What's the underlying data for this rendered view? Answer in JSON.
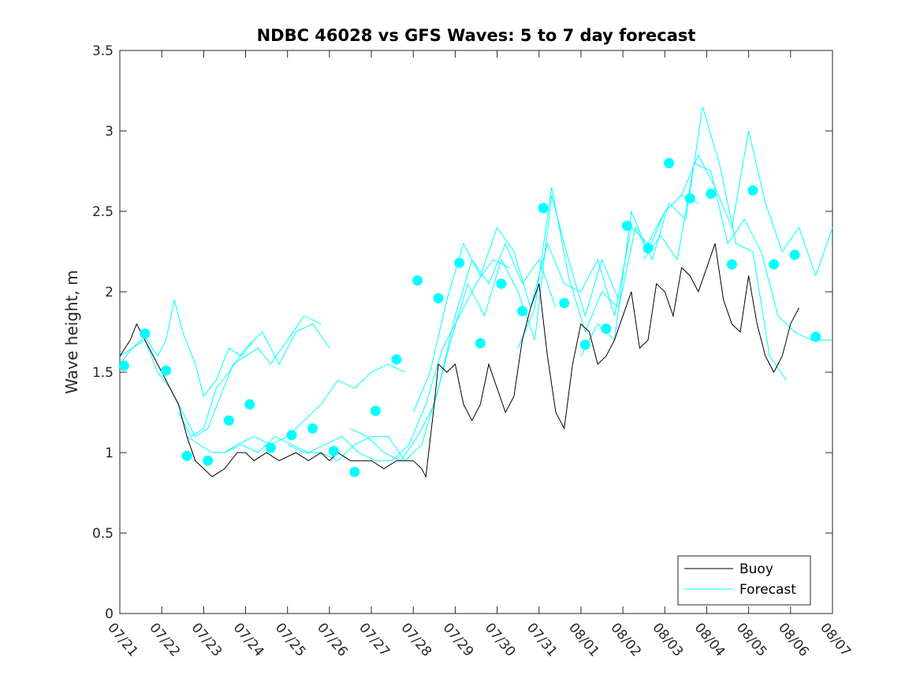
{
  "chart_data": {
    "type": "line",
    "title": "NDBC 46028 vs GFS Waves: 5 to 7 day forecast",
    "xlabel": "",
    "ylabel": "Wave height, m",
    "xlim": [
      "07/21",
      "08/07"
    ],
    "ylim": [
      0,
      3.5
    ],
    "yticks": [
      0,
      0.5,
      1,
      1.5,
      2,
      2.5,
      3,
      3.5
    ],
    "xticks": [
      "07/21",
      "07/22",
      "07/23",
      "07/24",
      "07/25",
      "07/26",
      "07/27",
      "07/28",
      "07/29",
      "07/30",
      "07/31",
      "08/01",
      "08/02",
      "08/03",
      "08/04",
      "08/05",
      "08/06",
      "08/07"
    ],
    "grid": false,
    "legend": {
      "placement": "bottom-right",
      "entries": [
        "Buoy",
        "Forecast"
      ]
    },
    "colors": {
      "buoy": "#000000",
      "forecast": "#00ffff",
      "axis": "#262626"
    },
    "buoy": {
      "name": "Buoy",
      "x_days_from_07_21": [
        0,
        0.25,
        0.4,
        0.6,
        0.8,
        1.0,
        1.2,
        1.4,
        1.6,
        1.8,
        2.0,
        2.2,
        2.5,
        2.8,
        3.0,
        3.2,
        3.5,
        3.8,
        4.2,
        4.5,
        4.8,
        5.0,
        5.2,
        5.5,
        5.8,
        6.0,
        6.3,
        6.6,
        6.8,
        7.0,
        7.2,
        7.3,
        7.5,
        7.6,
        7.8,
        8.0,
        8.2,
        8.4,
        8.6,
        8.8,
        9.0,
        9.2,
        9.4,
        9.6,
        9.8,
        10.0,
        10.2,
        10.4,
        10.6,
        10.8,
        11.0,
        11.2,
        11.4,
        11.6,
        11.8,
        12.0,
        12.2,
        12.4,
        12.6,
        12.8,
        13.0,
        13.2,
        13.4,
        13.6,
        13.8,
        14.0,
        14.2,
        14.4,
        14.6,
        14.8,
        15.0,
        15.2,
        15.4,
        15.6,
        15.8,
        16.0,
        16.2
      ],
      "values": [
        1.6,
        1.7,
        1.8,
        1.7,
        1.6,
        1.5,
        1.4,
        1.3,
        1.1,
        0.95,
        0.9,
        0.85,
        0.9,
        1.0,
        1.0,
        0.95,
        1.0,
        0.95,
        1.0,
        0.95,
        1.0,
        0.95,
        1.0,
        0.95,
        0.95,
        0.95,
        0.9,
        0.95,
        0.95,
        0.95,
        0.9,
        0.85,
        1.3,
        1.55,
        1.5,
        1.55,
        1.3,
        1.2,
        1.3,
        1.55,
        1.4,
        1.25,
        1.35,
        1.7,
        1.9,
        2.05,
        1.6,
        1.25,
        1.15,
        1.55,
        1.8,
        1.75,
        1.55,
        1.6,
        1.7,
        1.85,
        2.0,
        1.65,
        1.7,
        2.05,
        2.0,
        1.85,
        2.15,
        2.1,
        2.0,
        2.15,
        2.3,
        1.95,
        1.8,
        1.75,
        2.1,
        1.8,
        1.6,
        1.5,
        1.6,
        1.8,
        1.9
      ]
    },
    "forecast_lines": [
      {
        "name": "Forecast",
        "x_days_from_07_21": [
          0,
          0.3,
          0.6,
          0.9,
          1.1,
          1.3,
          1.5,
          1.8,
          2.0,
          2.3,
          2.6,
          2.9,
          3.2
        ],
        "values": [
          1.55,
          1.65,
          1.72,
          1.6,
          1.7,
          1.95,
          1.75,
          1.55,
          1.35,
          1.45,
          1.65,
          1.6,
          1.7
        ]
      },
      {
        "name": "Forecast",
        "x_days_from_07_21": [
          0,
          0.3,
          0.6,
          0.9,
          1.2,
          1.5,
          1.8,
          2.1,
          2.4,
          2.7,
          3.0,
          3.3,
          3.6,
          4.0,
          4.4,
          4.8
        ],
        "values": [
          1.6,
          1.65,
          1.7,
          1.5,
          1.4,
          1.25,
          1.1,
          1.15,
          1.35,
          1.55,
          1.6,
          1.65,
          1.55,
          1.7,
          1.85,
          1.8
        ]
      },
      {
        "name": "Forecast",
        "x_days_from_07_21": [
          1.4,
          1.7,
          2.0,
          2.3,
          2.6,
          3.0,
          3.4,
          3.8,
          4.2,
          4.6,
          5.0
        ],
        "values": [
          1.25,
          1.1,
          1.15,
          1.4,
          1.5,
          1.65,
          1.75,
          1.55,
          1.75,
          1.8,
          1.65
        ]
      },
      {
        "name": "Forecast",
        "x_days_from_07_21": [
          1.6,
          1.9,
          2.2,
          2.5,
          2.8,
          3.2,
          3.6,
          4.0,
          4.4,
          4.8,
          5.2,
          5.6,
          6.0,
          6.4,
          6.8
        ],
        "values": [
          1.1,
          1.05,
          1.0,
          1.0,
          1.05,
          1.1,
          1.05,
          1.1,
          1.2,
          1.3,
          1.45,
          1.4,
          1.5,
          1.55,
          1.5
        ]
      },
      {
        "name": "Forecast",
        "x_days_from_07_21": [
          2.5,
          2.9,
          3.3,
          3.7,
          4.1,
          4.5,
          4.9,
          5.3,
          5.7,
          6.1,
          6.5,
          6.9,
          7.3,
          7.7,
          8.1,
          8.5,
          8.9,
          9.3
        ],
        "values": [
          1.0,
          1.05,
          1.0,
          1.1,
          1.05,
          1.0,
          1.05,
          1.1,
          1.0,
          0.95,
          0.95,
          1.05,
          1.3,
          1.65,
          1.85,
          2.05,
          2.2,
          2.15
        ]
      },
      {
        "name": "Forecast",
        "x_days_from_07_21": [
          4.0,
          4.4,
          4.8,
          5.2,
          5.6,
          6.0,
          6.4,
          6.8,
          7.2,
          7.6,
          8.0,
          8.4,
          8.8,
          9.2,
          9.6,
          10.0,
          10.4
        ],
        "values": [
          1.05,
          1.0,
          1.0,
          0.95,
          1.05,
          1.1,
          1.1,
          0.95,
          1.05,
          1.4,
          1.85,
          2.2,
          2.05,
          2.3,
          2.05,
          2.2,
          1.9
        ]
      },
      {
        "name": "Forecast",
        "x_days_from_07_21": [
          5.5,
          5.9,
          6.3,
          6.7,
          7.1,
          7.5,
          7.9,
          8.3,
          8.7,
          9.1,
          9.5,
          9.9,
          10.3,
          10.7,
          11.1,
          11.5,
          11.9
        ],
        "values": [
          1.15,
          1.1,
          1.0,
          0.95,
          1.1,
          1.3,
          1.7,
          2.05,
          1.85,
          2.2,
          2.0,
          1.7,
          2.6,
          2.2,
          1.85,
          2.2,
          1.95
        ]
      },
      {
        "name": "Forecast",
        "x_days_from_07_21": [
          7.0,
          7.4,
          7.8,
          8.2,
          8.6,
          9.0,
          9.4,
          9.8,
          10.2,
          10.6,
          11.0,
          11.4,
          11.8,
          12.2,
          12.6,
          13.0,
          13.4,
          13.8
        ],
        "values": [
          1.25,
          1.5,
          1.95,
          2.3,
          2.1,
          2.4,
          2.25,
          1.9,
          2.3,
          2.05,
          2.0,
          2.2,
          1.85,
          2.4,
          2.3,
          2.5,
          2.6,
          2.55
        ]
      },
      {
        "name": "Forecast",
        "x_days_from_07_21": [
          9.5,
          9.9,
          10.3,
          10.7,
          11.1,
          11.5,
          11.9,
          12.3,
          12.7,
          13.1,
          13.5,
          13.9,
          14.3,
          14.7,
          15.1,
          15.5,
          15.9
        ],
        "values": [
          1.65,
          1.9,
          2.65,
          2.1,
          1.75,
          2.0,
          1.9,
          2.4,
          2.2,
          2.55,
          2.45,
          3.15,
          2.8,
          2.3,
          2.25,
          1.6,
          1.45
        ]
      },
      {
        "name": "Forecast",
        "x_days_from_07_21": [
          11.0,
          11.4,
          11.8,
          12.2,
          12.6,
          13.0,
          13.4,
          13.8,
          14.2,
          14.6,
          15.0,
          15.4,
          15.8,
          16.2,
          16.6,
          17.0
        ],
        "values": [
          1.6,
          1.8,
          1.7,
          2.5,
          2.25,
          2.5,
          2.6,
          2.85,
          2.65,
          2.4,
          3.0,
          2.55,
          2.25,
          2.4,
          2.1,
          2.4
        ]
      },
      {
        "name": "Forecast",
        "x_days_from_07_21": [
          12.5,
          12.9,
          13.3,
          13.7,
          14.1,
          14.5,
          14.9,
          15.3,
          15.7,
          16.1,
          16.5,
          17.0
        ],
        "values": [
          2.2,
          2.35,
          2.2,
          2.8,
          2.75,
          2.3,
          2.45,
          2.25,
          1.85,
          1.75,
          1.7,
          1.7
        ]
      }
    ],
    "forecast_points": {
      "x_days_from_07_21": [
        0.1,
        0.6,
        1.1,
        1.6,
        2.1,
        2.6,
        3.1,
        3.6,
        4.1,
        4.6,
        5.1,
        5.6,
        6.1,
        6.6,
        7.1,
        7.6,
        8.1,
        8.6,
        9.1,
        9.6,
        10.1,
        10.6,
        11.1,
        11.6,
        12.1,
        12.6,
        13.1,
        13.6,
        14.1,
        14.6,
        15.1,
        15.6,
        16.1,
        16.6
      ],
      "values": [
        1.54,
        1.74,
        1.51,
        0.98,
        0.95,
        1.2,
        1.3,
        1.03,
        1.11,
        1.15,
        1.01,
        0.88,
        1.26,
        1.58,
        2.07,
        1.96,
        2.18,
        1.68,
        2.05,
        1.88,
        2.52,
        1.93,
        1.67,
        1.77,
        2.41,
        2.27,
        2.8,
        2.58,
        2.61,
        2.17,
        2.63,
        2.17,
        2.23,
        1.72
      ]
    }
  }
}
